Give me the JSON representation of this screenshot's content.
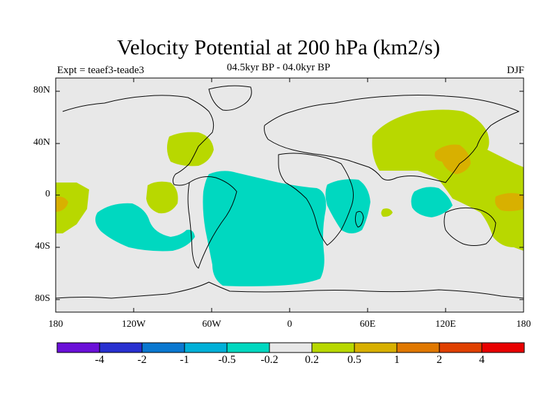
{
  "title": "Velocity Potential at 200 hPa (km2/s)",
  "subtitle": "04.5kyr BP - 04.0kyr BP",
  "left_label": "Expt = teaef3-teade3",
  "right_label": "DJF",
  "y_ticks": [
    "80N",
    "40N",
    "0",
    "40S",
    "80S"
  ],
  "x_ticks": [
    "180",
    "120W",
    "60W",
    "0",
    "60E",
    "120E",
    "180"
  ],
  "colorbar": {
    "colors": [
      "#6a10d8",
      "#2830d0",
      "#0a78d0",
      "#00b0d8",
      "#00d8c0",
      "#e8e8e8",
      "#b8d800",
      "#d8b000",
      "#e07800",
      "#e04000",
      "#e80000"
    ],
    "labels": [
      "-4",
      "-2",
      "-1",
      "-0.5",
      "-0.2",
      "0.2",
      "0.5",
      "1",
      "2",
      "4"
    ]
  },
  "palette": {
    "ocean_neutral": "#e8e8e8",
    "neg_02": "#00d8c0",
    "pos_02": "#b8d800",
    "pos_05": "#d8b000"
  }
}
